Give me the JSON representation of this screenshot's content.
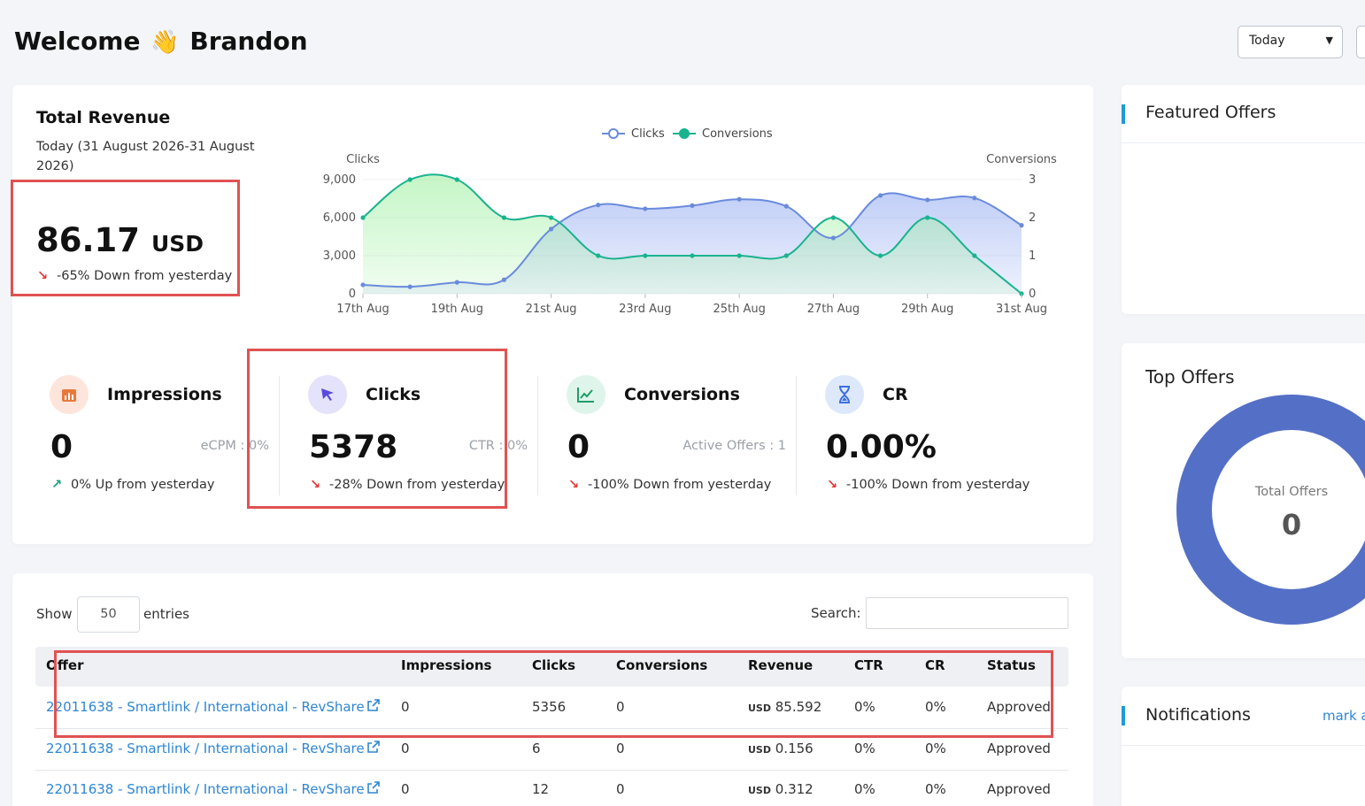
{
  "header": {
    "welcome": "Welcome",
    "wave_icon": "👋",
    "user_name": "Brandon",
    "date_filter": "Today"
  },
  "revenue": {
    "title": "Total Revenue",
    "date_range": "Today (31 August 2026-31 August 2026)",
    "value": "86.17",
    "currency": "USD",
    "trend_text": "-65% Down from yesterday",
    "trend_direction": "down"
  },
  "chart_data": {
    "type": "line",
    "legend": [
      "Clicks",
      "Conversions"
    ],
    "legend_position": "top-center",
    "ylabel_left": "Clicks",
    "ylabel_right": "Conversions",
    "left_axis": {
      "range": [
        0,
        9000
      ],
      "ticks": [
        "0",
        "3,000",
        "6,000",
        "9,000"
      ]
    },
    "right_axis": {
      "range": [
        0,
        3
      ],
      "ticks": [
        "0",
        "1",
        "2",
        "3"
      ]
    },
    "x_tick_labels": [
      "17th Aug",
      "19th Aug",
      "21st Aug",
      "23rd Aug",
      "25th Aug",
      "27th Aug",
      "29th Aug",
      "31st Aug"
    ],
    "categories": [
      "17th Aug",
      "18th Aug",
      "19th Aug",
      "20th Aug",
      "21st Aug",
      "22nd Aug",
      "23rd Aug",
      "24th Aug",
      "25th Aug",
      "26th Aug",
      "27th Aug",
      "28th Aug",
      "29th Aug",
      "30th Aug",
      "31st Aug"
    ],
    "series": [
      {
        "name": "Clicks",
        "axis": "left",
        "color": "#6a8bdc",
        "values": [
          700,
          550,
          900,
          1100,
          5100,
          7000,
          6700,
          6950,
          7450,
          6900,
          4400,
          7750,
          7400,
          7550,
          5400
        ]
      },
      {
        "name": "Conversions",
        "axis": "right",
        "color": "#19b38f",
        "values": [
          2,
          3,
          3,
          2,
          2,
          1,
          1,
          1,
          1,
          1,
          2,
          1,
          2,
          1,
          0
        ]
      }
    ]
  },
  "stats": [
    {
      "title": "Impressions",
      "value": "0",
      "side": "eCPM : 0%",
      "trend": "0% Up from yesterday",
      "direction": "up",
      "icon": "bar-chart-icon",
      "icon_bg": "#fde5dc",
      "icon_color": "#e8793b"
    },
    {
      "title": "Clicks",
      "value": "5378",
      "side": "CTR : 0%",
      "trend": "-28% Down from yesterday",
      "direction": "down",
      "icon": "pointer-click-icon",
      "icon_bg": "#e5e3fb",
      "icon_color": "#5b4bdb"
    },
    {
      "title": "Conversions",
      "value": "0",
      "side": "Active Offers : 1",
      "trend": "-100% Down from yesterday",
      "direction": "down",
      "icon": "line-chart-icon",
      "icon_bg": "#dff4ea",
      "icon_color": "#1f9d69"
    },
    {
      "title": "CR",
      "value": "0.00%",
      "side": "",
      "trend": "-100% Down from yesterday",
      "direction": "down",
      "icon": "hourglass-icon",
      "icon_bg": "#dde8fb",
      "icon_color": "#3b6fe0"
    }
  ],
  "table": {
    "show_label": "Show",
    "page_length": "50",
    "entries_label": "entries",
    "search_label": "Search:",
    "columns": [
      "Offer",
      "Impressions",
      "Clicks",
      "Conversions",
      "Revenue",
      "CTR",
      "CR",
      "Status"
    ],
    "rows": [
      {
        "offer": "22011638 - Smartlink / International - RevShare",
        "impressions": "0",
        "clicks": "5356",
        "conversions": "0",
        "revenue_currency": "USD",
        "revenue": "85.592",
        "ctr": "0%",
        "cr": "0%",
        "status": "Approved"
      },
      {
        "offer": "22011638 - Smartlink / International - RevShare",
        "impressions": "0",
        "clicks": "6",
        "conversions": "0",
        "revenue_currency": "USD",
        "revenue": "0.156",
        "ctr": "0%",
        "cr": "0%",
        "status": "Approved"
      },
      {
        "offer": "22011638 - Smartlink / International - RevShare",
        "impressions": "0",
        "clicks": "12",
        "conversions": "0",
        "revenue_currency": "USD",
        "revenue": "0.312",
        "ctr": "0%",
        "cr": "0%",
        "status": "Approved"
      }
    ]
  },
  "sidebar": {
    "featured_title": "Featured Offers",
    "top_offers_title": "Top Offers",
    "donut_label": "Total Offers",
    "donut_value": "0",
    "donut_color": "#5470c6",
    "notifications_title": "Notifications",
    "notifications_action": "mark all as read"
  }
}
